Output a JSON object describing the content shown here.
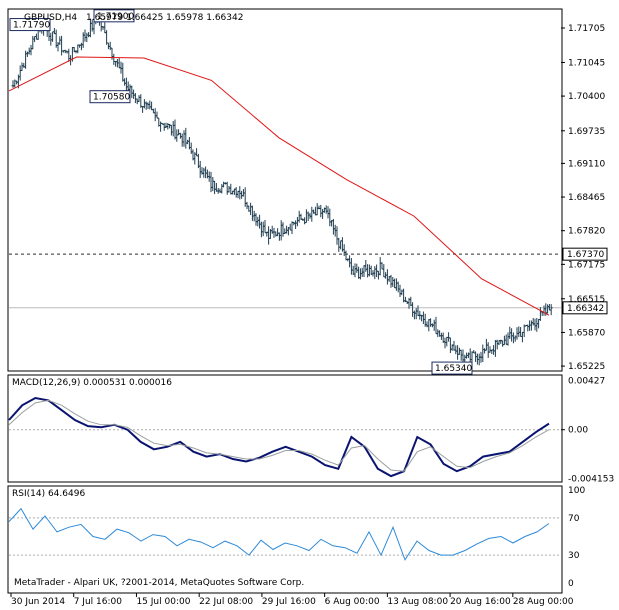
{
  "header": {
    "symbol_label": "GBPUSD,H4",
    "ohlc_label": "1.65979 1.66425 1.65978 1.66342"
  },
  "main_panel": {
    "price_axis_labels": [
      "1.71705",
      "1.71045",
      "1.70400",
      "1.69735",
      "1.69110",
      "1.68465",
      "1.67820",
      "1.67175",
      "1.66515",
      "1.65870",
      "1.65225"
    ],
    "current_price_label": "1.66342",
    "horizontal_line_label": "1.67370",
    "annotations": [
      "1.71790",
      "1.71900",
      "1.70580",
      "1.65340"
    ],
    "indicator": "moving average (red)"
  },
  "macd_panel": {
    "label": "MACD(12,26,9) 0.000531 0.000016",
    "axis_labels": [
      "0.00427",
      "0.00",
      "-0.004153"
    ],
    "current_label": "0.00"
  },
  "rsi_panel": {
    "label": "RSI(14) 64.6496",
    "axis_labels": [
      "100",
      "70",
      "30",
      "0"
    ],
    "footer": "MetaTrader - Alpari UK, ?2001-2014, MetaQuotes Software Corp."
  },
  "x_axis_labels": [
    "30 Jun 2014",
    "7 Jul 16:00",
    "15 Jul 00:00",
    "22 Jul 08:00",
    "29 Jul 16:00",
    "6 Aug 00:00",
    "13 Aug 08:00",
    "20 Aug 16:00",
    "28 Aug 00:00"
  ],
  "colors": {
    "candles": "#1f3d50",
    "ma_line": "#e01515",
    "macd_line": "#0a1470",
    "macd_signal": "#9aa0a0",
    "rsi_line": "#2e8bd8",
    "grid_dash": "#b0b0b0",
    "hline": "#2a2a2a"
  },
  "chart_data": [
    {
      "type": "ohlc",
      "title": "GBPUSD,H4",
      "ylim": [
        1.6515,
        1.7205
      ],
      "key_points": [
        {
          "x": "30 Jun 2014",
          "y": 1.706
        },
        {
          "x": "3 Jul",
          "y": 1.7179
        },
        {
          "x": "9 Jul",
          "y": 1.7115
        },
        {
          "x": "15 Jul 00:00",
          "y": 1.719
        },
        {
          "x": "16 Jul",
          "y": 1.7058
        },
        {
          "x": "22 Jul 08:00",
          "y": 1.7
        },
        {
          "x": "25 Jul",
          "y": 1.696
        },
        {
          "x": "29 Jul 16:00",
          "y": 1.687
        },
        {
          "x": "1 Aug",
          "y": 1.686
        },
        {
          "x": "6 Aug 00:00",
          "y": 1.677
        },
        {
          "x": "8 Aug",
          "y": 1.68
        },
        {
          "x": "11 Aug",
          "y": 1.682
        },
        {
          "x": "12 Aug",
          "y": 1.67
        },
        {
          "x": "14 Aug",
          "y": 1.671
        },
        {
          "x": "15 Aug",
          "y": 1.664
        },
        {
          "x": "19 Aug",
          "y": 1.659
        },
        {
          "x": "21 Aug",
          "y": 1.6534
        },
        {
          "x": "25 Aug",
          "y": 1.656
        },
        {
          "x": "28 Aug 00:00",
          "y": 1.659
        },
        {
          "x": "29 Aug",
          "y": 1.6634
        }
      ],
      "ma_points": [
        {
          "x": "30 Jun 2014",
          "y": 1.705
        },
        {
          "x": "7 Jul 16:00",
          "y": 1.7115
        },
        {
          "x": "15 Jul 00:00",
          "y": 1.7113
        },
        {
          "x": "22 Jul 08:00",
          "y": 1.707
        },
        {
          "x": "29 Jul 16:00",
          "y": 1.696
        },
        {
          "x": "6 Aug 00:00",
          "y": 1.688
        },
        {
          "x": "13 Aug 08:00",
          "y": 1.681
        },
        {
          "x": "20 Aug 16:00",
          "y": 1.669
        },
        {
          "x": "28 Aug 00:00",
          "y": 1.662
        }
      ],
      "hline": 1.6737,
      "current": 1.66342
    },
    {
      "type": "line",
      "title": "MACD(12,26,9) 0.000531 0.000016",
      "ylim": [
        -0.0042,
        0.0044
      ],
      "series": [
        {
          "name": "MACD",
          "values": [
            0.0008,
            0.002,
            0.0026,
            0.0024,
            0.0016,
            0.0008,
            0.0003,
            0.0002,
            0.0004,
            0.0,
            -0.001,
            -0.0016,
            -0.0014,
            -0.001,
            -0.0018,
            -0.0022,
            -0.002,
            -0.0024,
            -0.0026,
            -0.0023,
            -0.0018,
            -0.0014,
            -0.0018,
            -0.0022,
            -0.0029,
            -0.0032,
            -0.0006,
            -0.0014,
            -0.0032,
            -0.0038,
            -0.0034,
            -0.0006,
            -0.0012,
            -0.0028,
            -0.0034,
            -0.003,
            -0.0022,
            -0.002,
            -0.0018,
            -0.001,
            -0.0002,
            0.0005
          ]
        },
        {
          "name": "Signal",
          "values": [
            0.0004,
            0.0014,
            0.0022,
            0.0024,
            0.002,
            0.0013,
            0.0007,
            0.0004,
            0.0004,
            0.0002,
            -0.0005,
            -0.0011,
            -0.0013,
            -0.0012,
            -0.0015,
            -0.0019,
            -0.002,
            -0.0022,
            -0.0024,
            -0.0024,
            -0.0021,
            -0.0017,
            -0.0017,
            -0.002,
            -0.0025,
            -0.0029,
            -0.0015,
            -0.0013,
            -0.0024,
            -0.0033,
            -0.0034,
            -0.0018,
            -0.0014,
            -0.0022,
            -0.003,
            -0.0031,
            -0.0026,
            -0.0022,
            -0.0019,
            -0.0013,
            -0.0006,
            0.0
          ]
        }
      ]
    },
    {
      "type": "line",
      "title": "RSI(14) 64.6496",
      "ylim": [
        0,
        100
      ],
      "series": [
        {
          "name": "RSI(14)",
          "values": [
            66,
            80,
            58,
            72,
            55,
            60,
            63,
            50,
            47,
            58,
            54,
            45,
            52,
            50,
            40,
            47,
            44,
            38,
            45,
            40,
            30,
            46,
            36,
            43,
            40,
            35,
            47,
            40,
            38,
            32,
            55,
            30,
            60,
            25,
            45,
            35,
            30,
            30,
            35,
            42,
            48,
            50,
            43,
            50,
            55,
            64
          ]
        }
      ]
    }
  ]
}
